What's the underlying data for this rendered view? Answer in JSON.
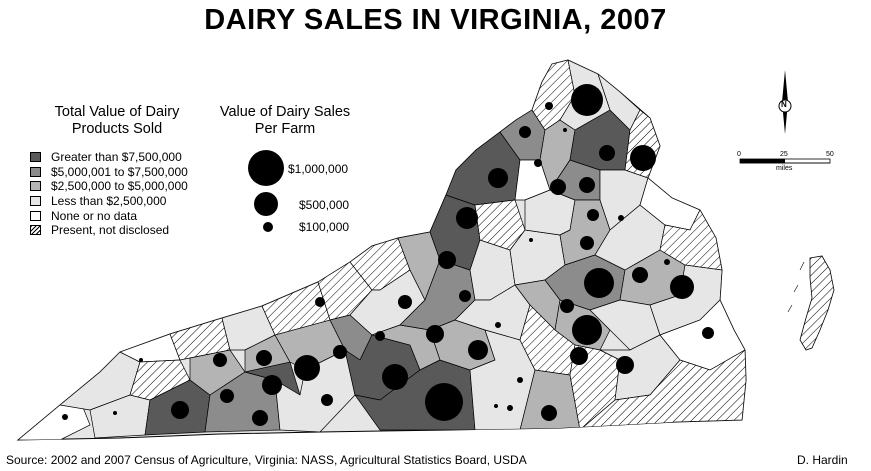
{
  "title": "DAIRY SALES IN VIRGINIA, 2007",
  "legend_total": {
    "heading_line1": "Total Value of Dairy",
    "heading_line2": "Products Sold",
    "items": [
      {
        "label": "Greater than $7,500,000",
        "color": "#595959",
        "pattern": false
      },
      {
        "label": "$5,000,001 to $7,500,000",
        "color": "#8c8c8c",
        "pattern": false
      },
      {
        "label": "$2,500,000 to $5,000,000",
        "color": "#b4b4b4",
        "pattern": false
      },
      {
        "label": "Less than $2,500,000",
        "color": "#e6e6e6",
        "pattern": false
      },
      {
        "label": "None or no data",
        "color": "#ffffff",
        "pattern": false
      },
      {
        "label": "Present, not disclosed",
        "color": "#ffffff",
        "pattern": true
      }
    ]
  },
  "legend_farm": {
    "heading_line1": "Value of Dairy Sales",
    "heading_line2": "Per Farm",
    "items": [
      {
        "label": "$1,000,000"
      },
      {
        "label": "$500,000"
      },
      {
        "label": "$100,000"
      }
    ]
  },
  "north_arrow": {
    "letter": "N"
  },
  "scale_bar": {
    "ticks": [
      "0",
      "25",
      "50"
    ],
    "unit": "miles"
  },
  "footer": {
    "source": "Source: 2002 and 2007 Census of Agriculture, Virginia: NASS, Agricultural Statistics Board, USDA",
    "author": "D. Hardin"
  }
}
